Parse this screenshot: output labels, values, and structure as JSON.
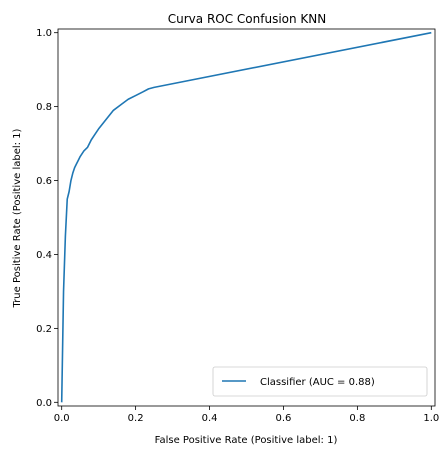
{
  "chart_data": {
    "type": "line",
    "title": "Curva ROC Confusion KNN",
    "xlabel": "False Positive Rate (Positive label: 1)",
    "ylabel": "True Positive Rate (Positive label: 1)",
    "xlim": [
      -0.01,
      1.01
    ],
    "ylim": [
      -0.01,
      1.01
    ],
    "xticks": [
      "0.0",
      "0.2",
      "0.4",
      "0.6",
      "0.8",
      "1.0"
    ],
    "yticks": [
      "0.0",
      "0.2",
      "0.4",
      "0.6",
      "0.8",
      "1.0"
    ],
    "grid": false,
    "legend_position": "lower-right",
    "series": [
      {
        "name": "Classifier (AUC = 0.88)",
        "color": "#1f77b4",
        "x": [
          0.0,
          0.005,
          0.01,
          0.015,
          0.02,
          0.025,
          0.03,
          0.035,
          0.04,
          0.045,
          0.05,
          0.06,
          0.07,
          0.08,
          0.09,
          0.1,
          0.12,
          0.14,
          0.16,
          0.18,
          0.2,
          0.22,
          0.235,
          0.25,
          1.0
        ],
        "y": [
          0.0,
          0.3,
          0.45,
          0.55,
          0.57,
          0.6,
          0.62,
          0.635,
          0.645,
          0.655,
          0.665,
          0.68,
          0.69,
          0.71,
          0.725,
          0.74,
          0.765,
          0.79,
          0.805,
          0.82,
          0.83,
          0.84,
          0.848,
          0.852,
          1.0
        ]
      }
    ]
  }
}
